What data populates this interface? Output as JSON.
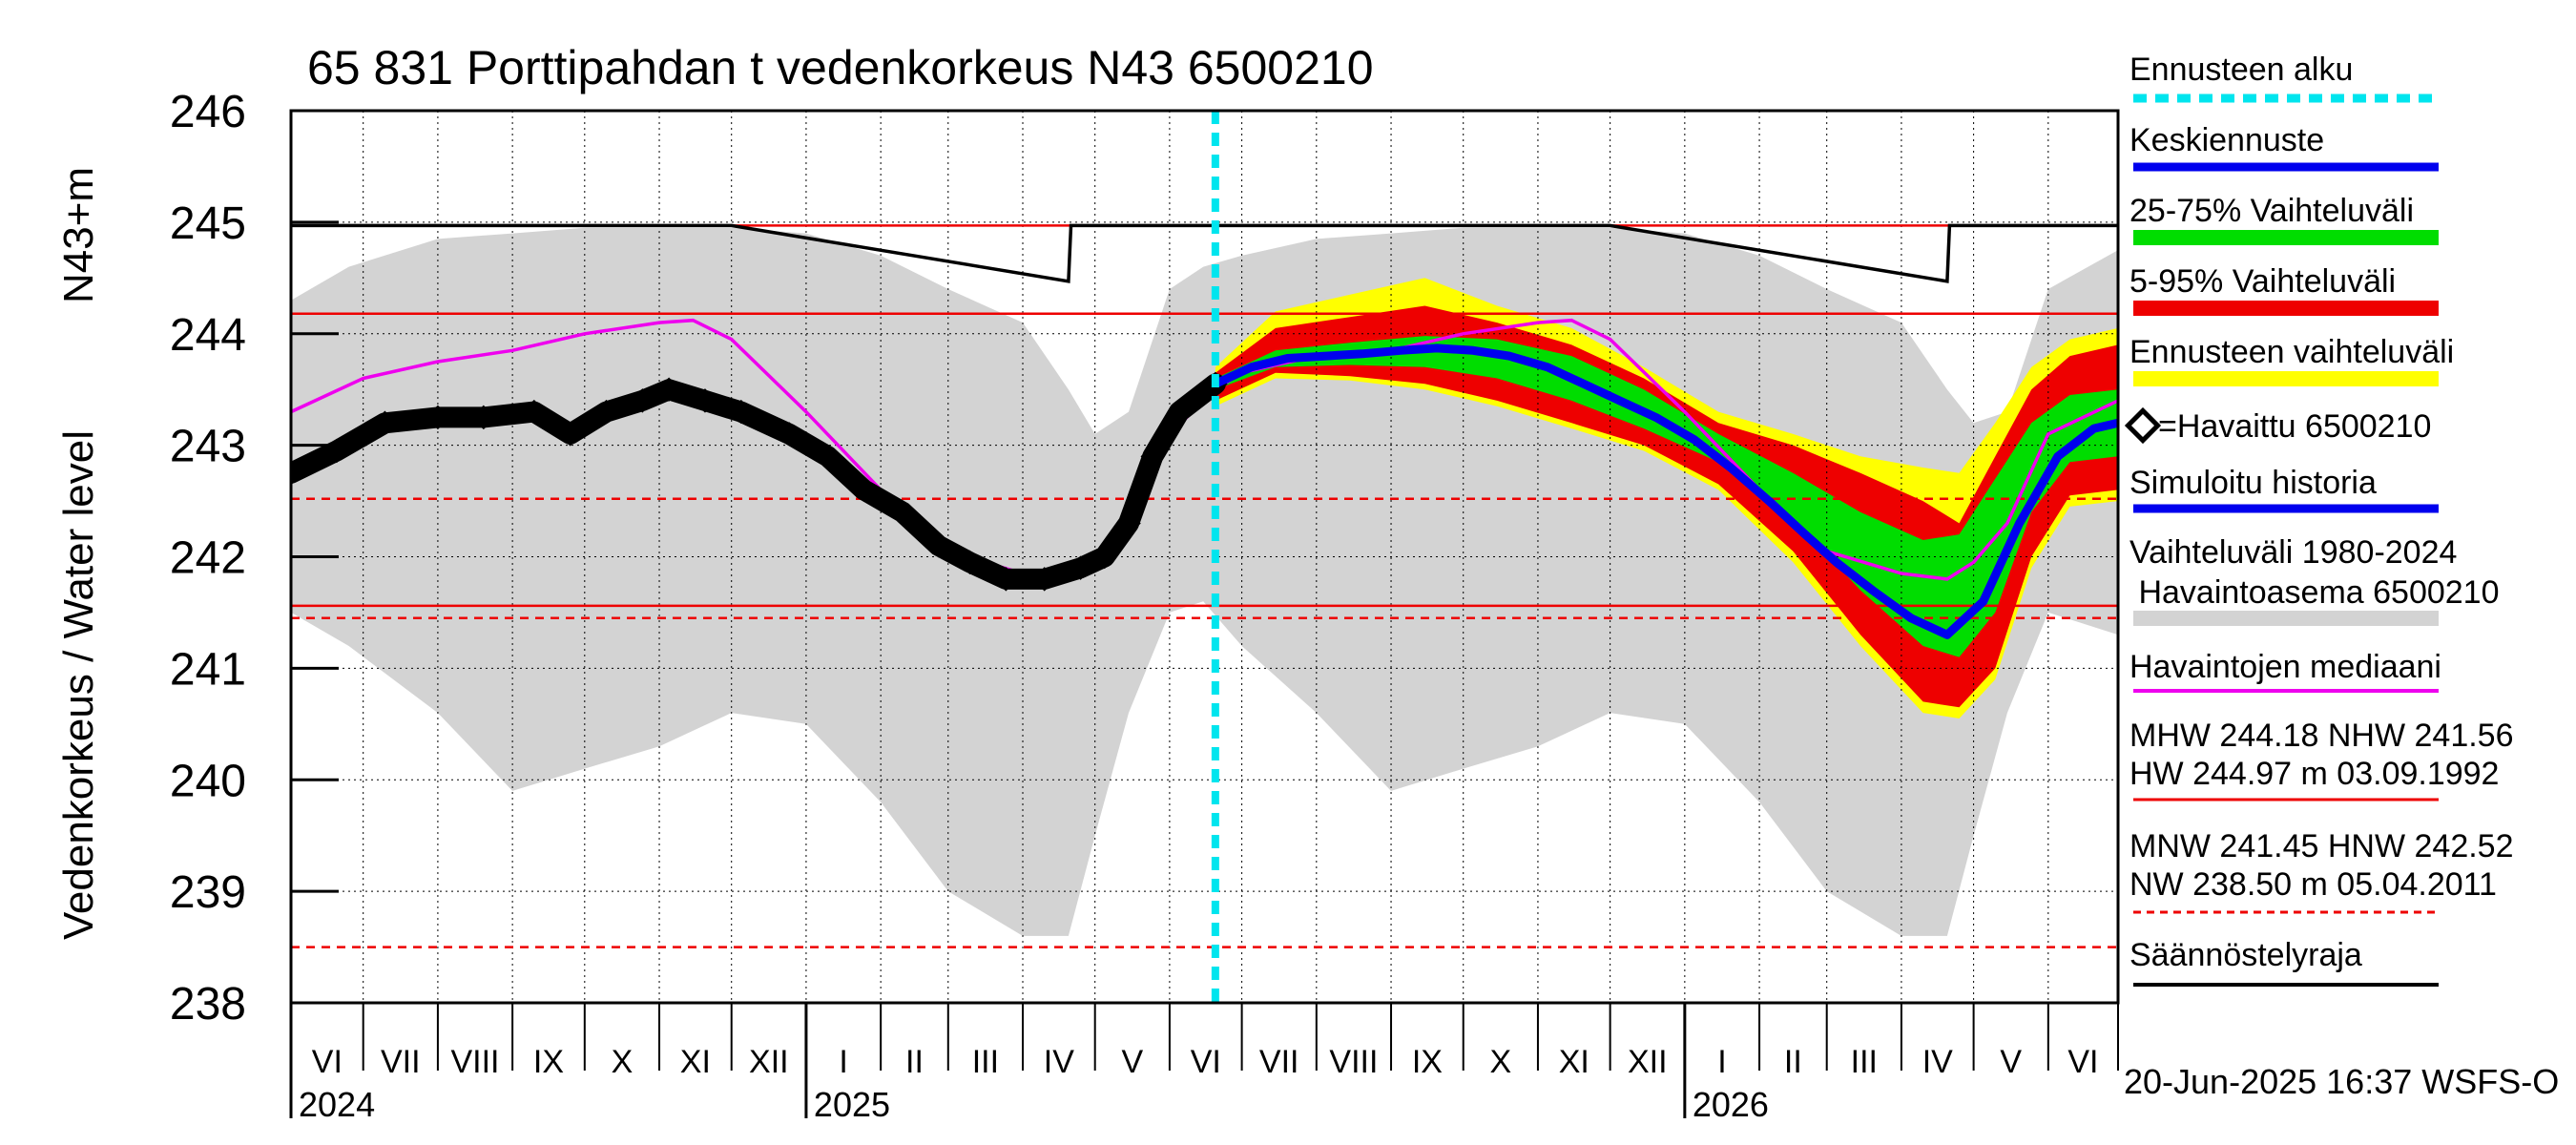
{
  "title": "65 831 Porttipahdan t vedenkorkeus N43 6500210",
  "footer": "20-Jun-2025 16:37 WSFS-O",
  "chart_data": {
    "type": "area",
    "title": "65 831 Porttipahdan t vedenkorkeus N43 6500210",
    "ylabel": "Vedenkorkeus / Water level",
    "ylabel_unit": "N43+m",
    "ylim": [
      238,
      246
    ],
    "yticks": [
      238,
      239,
      240,
      241,
      242,
      243,
      244,
      245,
      246
    ],
    "xlim": [
      "2024-06-01",
      "2026-06-30"
    ],
    "month_labels": [
      "VI",
      "VII",
      "VIII",
      "IX",
      "X",
      "XI",
      "XII",
      "I",
      "II",
      "III",
      "IV",
      "V",
      "VI",
      "VII",
      "VIII",
      "IX",
      "X",
      "XI",
      "XII",
      "I",
      "II",
      "III",
      "IV",
      "V",
      "VI"
    ],
    "year_labels": [
      {
        "date": "2024-06-01",
        "label": "2024"
      },
      {
        "date": "2025-01-01",
        "label": "2025"
      },
      {
        "date": "2026-01-01",
        "label": "2026"
      }
    ],
    "grid": true,
    "legend_position": "right",
    "forecast_start": "2025-06-20",
    "reference_lines": {
      "MHW": 244.18,
      "NHW": 241.56,
      "HW": 244.97,
      "MNW": 241.45,
      "HNW": 242.52,
      "NW": 238.5
    },
    "legend": [
      {
        "label": "Ennusteen alku",
        "color": "#00e5ee",
        "style": "dashed"
      },
      {
        "label": "Keskiennuste",
        "color": "#0000ee",
        "style": "solid"
      },
      {
        "label": "25-75% Vaihteluväli",
        "color": "#00dd00",
        "style": "band"
      },
      {
        "label": "5-95% Vaihteluväli",
        "color": "#ee0000",
        "style": "band"
      },
      {
        "label": "Ennusteen vaihteluväli",
        "color": "#ffff00",
        "style": "band"
      },
      {
        "label": "=Havaittu 6500210",
        "color": "#000000",
        "style": "marker"
      },
      {
        "label": "Simuloitu historia",
        "color": "#0000ee",
        "style": "solid"
      },
      {
        "label": "Vaihteluväli 1980-2024",
        "label2": " Havaintoasema 6500210",
        "color": "#d3d3d3",
        "style": "band"
      },
      {
        "label": "Havaintojen mediaani",
        "color": "#ee00ee",
        "style": "solid"
      },
      {
        "label": "MHW 244.18 NHW 241.56",
        "label2": "HW 244.97 m 03.09.1992",
        "color": "#ee0000",
        "style": "solid"
      },
      {
        "label": "MNW 241.45 HNW 242.52",
        "label2": "NW 238.50 m 05.04.2011",
        "color": "#ee0000",
        "style": "dashed"
      },
      {
        "label": "Säännöstelyraja",
        "color": "#000000",
        "style": "solid"
      }
    ],
    "series": {
      "historical_range_1980_2024": {
        "x": [
          "2024-06-01",
          "2024-06-25",
          "2024-08-01",
          "2024-09-01",
          "2024-10-01",
          "2024-11-01",
          "2024-12-01",
          "2025-01-01",
          "2025-02-01",
          "2025-03-01",
          "2025-04-01",
          "2025-04-20",
          "2025-05-01",
          "2025-05-15",
          "2025-06-01",
          "2025-06-15",
          "2025-07-01",
          "2025-08-01",
          "2025-09-01",
          "2025-10-01",
          "2025-11-01",
          "2025-12-01",
          "2026-01-01",
          "2026-02-01",
          "2026-03-01",
          "2026-04-01",
          "2026-04-20",
          "2026-05-01",
          "2026-05-15",
          "2026-06-01",
          "2026-06-30"
        ],
        "upper": [
          244.3,
          244.6,
          244.85,
          244.9,
          244.95,
          244.95,
          244.95,
          244.9,
          244.7,
          244.4,
          244.1,
          243.5,
          243.1,
          243.3,
          244.4,
          244.6,
          244.7,
          244.85,
          244.9,
          244.95,
          244.95,
          244.95,
          244.9,
          244.7,
          244.4,
          244.1,
          243.5,
          243.2,
          243.3,
          244.4,
          244.75
        ],
        "lower": [
          241.5,
          241.2,
          240.6,
          239.9,
          240.1,
          240.3,
          240.6,
          240.5,
          239.8,
          239.0,
          238.6,
          238.6,
          239.5,
          240.6,
          241.5,
          241.6,
          241.2,
          240.6,
          239.9,
          240.1,
          240.3,
          240.6,
          240.5,
          239.8,
          239.0,
          238.6,
          238.6,
          239.5,
          240.6,
          241.5,
          241.3
        ]
      },
      "observation_median": {
        "x": [
          "2024-06-01",
          "2024-07-01",
          "2024-08-01",
          "2024-09-01",
          "2024-10-01",
          "2024-11-01",
          "2024-11-15",
          "2024-12-01",
          "2025-01-01",
          "2025-02-01",
          "2025-03-01",
          "2025-04-01",
          "2025-04-20",
          "2025-05-01",
          "2025-05-15",
          "2025-06-01",
          "2025-06-20",
          "2025-07-01",
          "2025-08-01",
          "2025-09-01",
          "2025-10-01",
          "2025-11-01",
          "2025-11-15",
          "2025-12-01",
          "2026-01-01",
          "2026-02-01",
          "2026-03-01",
          "2026-04-01",
          "2026-04-20",
          "2026-05-01",
          "2026-05-15",
          "2026-06-01",
          "2026-06-30"
        ],
        "y": [
          243.3,
          243.6,
          243.75,
          243.85,
          244.0,
          244.1,
          244.12,
          243.95,
          243.3,
          242.6,
          242.05,
          241.85,
          241.8,
          241.95,
          242.3,
          243.1,
          243.5,
          243.65,
          243.8,
          243.85,
          244.0,
          244.1,
          244.12,
          243.95,
          243.3,
          242.6,
          242.05,
          241.85,
          241.8,
          241.95,
          242.3,
          243.1,
          243.4
        ]
      },
      "observed": {
        "x": [
          "2024-06-01",
          "2024-06-20",
          "2024-07-10",
          "2024-08-01",
          "2024-08-20",
          "2024-09-10",
          "2024-09-25",
          "2024-10-10",
          "2024-10-25",
          "2024-11-05",
          "2024-11-20",
          "2024-12-05",
          "2024-12-25",
          "2025-01-10",
          "2025-01-25",
          "2025-02-10",
          "2025-02-25",
          "2025-03-10",
          "2025-03-25",
          "2025-04-10",
          "2025-04-25",
          "2025-05-05",
          "2025-05-15",
          "2025-05-25",
          "2025-06-05",
          "2025-06-20"
        ],
        "y": [
          242.75,
          242.95,
          243.2,
          243.25,
          243.25,
          243.3,
          243.1,
          243.3,
          243.4,
          243.5,
          243.4,
          243.3,
          243.1,
          242.9,
          242.6,
          242.4,
          242.1,
          241.95,
          241.8,
          241.8,
          241.9,
          242.0,
          242.3,
          242.9,
          243.3,
          243.55
        ]
      },
      "forecast_mean": {
        "x": [
          "2025-06-20",
          "2025-07-05",
          "2025-07-20",
          "2025-08-05",
          "2025-08-20",
          "2025-09-05",
          "2025-09-20",
          "2025-10-05",
          "2025-10-20",
          "2025-11-05",
          "2025-11-20",
          "2025-12-05",
          "2025-12-20",
          "2026-01-05",
          "2026-01-20",
          "2026-02-05",
          "2026-02-20",
          "2026-03-05",
          "2026-03-20",
          "2026-04-05",
          "2026-04-20",
          "2026-05-05",
          "2026-05-20",
          "2026-06-05",
          "2026-06-20",
          "2026-06-30"
        ],
        "y": [
          243.55,
          243.7,
          243.78,
          243.8,
          243.82,
          243.85,
          243.87,
          243.85,
          243.8,
          243.7,
          243.55,
          243.4,
          243.25,
          243.05,
          242.8,
          242.5,
          242.2,
          241.95,
          241.7,
          241.45,
          241.3,
          241.6,
          242.3,
          242.9,
          243.15,
          243.2
        ]
      },
      "forecast_25_75": {
        "x": [
          "2025-06-20",
          "2025-07-15",
          "2025-08-15",
          "2025-09-15",
          "2025-10-15",
          "2025-11-15",
          "2025-12-15",
          "2026-01-15",
          "2026-02-15",
          "2026-03-15",
          "2026-04-10",
          "2026-04-25",
          "2026-05-10",
          "2026-05-25",
          "2026-06-10",
          "2026-06-30"
        ],
        "upper": [
          243.6,
          243.85,
          243.92,
          243.98,
          243.95,
          243.8,
          243.5,
          243.1,
          242.75,
          242.4,
          242.15,
          242.2,
          242.7,
          243.2,
          243.45,
          243.5
        ],
        "lower": [
          243.5,
          243.7,
          243.72,
          243.7,
          243.6,
          243.4,
          243.15,
          242.85,
          242.35,
          241.7,
          241.2,
          241.1,
          241.5,
          242.4,
          242.85,
          242.9
        ]
      },
      "forecast_5_95": {
        "x": [
          "2025-06-20",
          "2025-07-15",
          "2025-08-15",
          "2025-09-15",
          "2025-10-15",
          "2025-11-15",
          "2025-12-15",
          "2026-01-15",
          "2026-02-15",
          "2026-03-15",
          "2026-04-10",
          "2026-04-25",
          "2026-05-10",
          "2026-05-25",
          "2026-06-10",
          "2026-06-30"
        ],
        "upper": [
          243.65,
          244.05,
          244.15,
          244.25,
          244.1,
          243.9,
          243.6,
          243.2,
          243.0,
          242.75,
          242.5,
          242.3,
          242.9,
          243.5,
          243.8,
          243.9
        ],
        "lower": [
          243.4,
          243.65,
          243.62,
          243.55,
          243.4,
          243.2,
          243.0,
          242.65,
          242.05,
          241.3,
          240.7,
          240.65,
          241.0,
          242.0,
          242.55,
          242.6
        ]
      },
      "forecast_range": {
        "x": [
          "2025-06-20",
          "2025-07-15",
          "2025-08-15",
          "2025-09-15",
          "2025-10-15",
          "2025-11-15",
          "2025-12-15",
          "2026-01-15",
          "2026-02-15",
          "2026-03-15",
          "2026-04-10",
          "2026-04-25",
          "2026-05-10",
          "2026-05-25",
          "2026-06-10",
          "2026-06-30"
        ],
        "upper": [
          243.7,
          244.2,
          244.35,
          244.5,
          244.25,
          244.05,
          243.7,
          243.3,
          243.1,
          242.9,
          242.8,
          242.75,
          243.2,
          243.7,
          243.95,
          244.05
        ],
        "lower": [
          243.35,
          243.6,
          243.58,
          243.5,
          243.35,
          243.15,
          242.95,
          242.6,
          241.95,
          241.2,
          240.6,
          240.55,
          240.9,
          241.9,
          242.45,
          242.5
        ]
      },
      "regulation_limit": {
        "x": [
          "2024-05-20",
          "2024-12-01",
          "2025-04-20",
          "2025-04-21",
          "2025-12-01",
          "2026-04-20",
          "2026-04-21",
          "2026-06-30"
        ],
        "y": [
          244.97,
          244.97,
          244.47,
          244.97,
          244.97,
          244.47,
          244.97,
          244.97
        ]
      }
    }
  }
}
